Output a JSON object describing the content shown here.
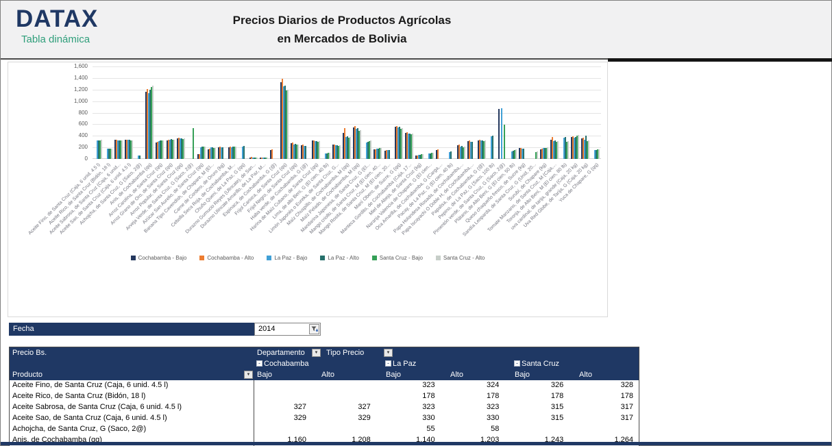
{
  "brand": {
    "logo": "DATAX",
    "tagline": "Tabla dinámica",
    "logo_color": "#1F3864",
    "tagline_color": "#2E9E7A"
  },
  "title": {
    "line1": "Precios Diarios de Productos Agrícolas",
    "line2": "en Mercados de Bolivia"
  },
  "theme": {
    "navy": "#1F3864",
    "header_bg": "#F1F1F2"
  },
  "chart_data": {
    "type": "bar",
    "title": "",
    "xlabel": "",
    "ylabel": "",
    "ylim": [
      0,
      1600
    ],
    "yticks": [
      0,
      200,
      400,
      600,
      800,
      1000,
      1200,
      1400,
      1600
    ],
    "grid": true,
    "legend_position": "bottom",
    "categories": [
      "Aceite Fino, de Santa Cruz (Caja, 6 unid. 4.5 l)",
      "Aceite Rico, de Santa Cruz (Bidón, 18 l)",
      "Aceite Sabrosa, de Santa Cruz (Caja, 6 unid...",
      "Aceite Sao, de Santa Cruz (Caja, 6 unid. 4.5 l)",
      "Achojcha, de Santa Cruz, G (Saco, 2@)",
      "Anis, de Cochabamba (qq)",
      "Arroz Carolina, de Santa Cruz (qq)",
      "Arroz Grano de Oro, de Santa Cruz (qq)",
      "Arroz Popular, de Santa Cruz (qq)",
      "Arveja Verde, de Santa Cruz, G (Saco, 2@)",
      "Azúcar San Aurelio, de Santa Cruz (qq)",
      "Banana Tipo Cavendish, de Chapare, M (El...",
      "Carne de Cordero, de Oruro (kg)",
      "Cebolla Seca Roja, de Cochabamba, M...",
      "Chuño Queni, de La Paz, G (qq)",
      "Durazno Gumucio Reyes (Ulincate), de San...",
      "Durazno Ulincate Amarillo, de La Paz, M...",
      "Espinaca, de Cochabamba, G (@)",
      "Frijol Carioca, de Santa Cruz (qq)",
      "Frijol Negro, de Santa Cruz (qq)",
      "Haba verde, de Cochabamba, G (@)",
      "Harina de Maíz Cubano, de Santa Cruz (qq)",
      "Lima, de alto Beni, G (El cien, 40 lb)",
      "Limón Japonés o Eureka, de Santa Cruz, G...",
      "Maíz Chuspillo, de Cochabamba, M (qq)",
      "Maíz Pelado, de Cochabamba, M (qq)",
      "Mandarina Japonesa, de Santa Cruz, G (El...",
      "Mango criollo, de Santa Cruz, M (El cien, 40...",
      "Mango Rosita, de Santa Cruz, M (El cien, 20...",
      "Maní Obero, de Sucre, G (qq)",
      "Manteca Gordito, de Cochabamba (Caja, 17...",
      "Miel de Abeja, de Santa Cruz (kg)",
      "Naranja Valencia de Chapare, G (El cien...",
      "Oca Amarilla, de Cochabamba, G (Carga,...",
      "Pacay, de La Paz, G (El cien, 40 lb)",
      "Papa Holandesa Rosada, de Cochabamba,...",
      "Papa Iscayachi O Doble H, de Cochabamba,...",
      "Papalisa, de Cochabamba, G (@)",
      "Pepino, de La Paz, G (Saco, 100 lb)",
      "Pimentón verde, de Santa Cruz, G (Saco, 2@)",
      "Plátano, de Alto Beni, G (El cien, 50 lb)",
      "Queso chaqueño fresco, de Sucre (kg)",
      "Sandía Leoparda, de Santa Cruz, G (Unid, 20...",
      "Surubí, de Chapare (kg)",
      "Tomate Manzano, de Santa Cruz, M (Caja,...",
      "Toronja, de Alto Beni, M (El cien, 80 lb)",
      "uva cardinal, de tarija, grande (Caja, 20 kg)",
      "Uva Red Globe, de Tarija, G (Caja, 20 kg)",
      "Yuca de Chapare, G (qq)"
    ],
    "series": [
      {
        "name": "Cochabamba - Bajo",
        "color": "#24385E",
        "values": [
          null,
          null,
          327,
          329,
          null,
          1160,
          285,
          320,
          360,
          null,
          80,
          165,
          205,
          200,
          null,
          30,
          25,
          160,
          1330,
          270,
          235,
          315,
          null,
          245,
          455,
          545,
          null,
          165,
          145,
          560,
          450,
          60,
          null,
          155,
          null,
          235,
          305,
          325,
          null,
          860,
          null,
          185,
          null,
          165,
          335,
          null,
          385,
          355,
          null
        ]
      },
      {
        "name": "Cochabamba - Alto",
        "color": "#ED7D31",
        "values": [
          null,
          null,
          327,
          329,
          null,
          1208,
          295,
          330,
          368,
          null,
          85,
          175,
          210,
          210,
          null,
          32,
          27,
          170,
          1390,
          280,
          245,
          320,
          null,
          255,
          530,
          565,
          null,
          170,
          150,
          575,
          460,
          65,
          null,
          165,
          null,
          245,
          315,
          335,
          null,
          null,
          null,
          195,
          null,
          175,
          385,
          null,
          395,
          365,
          null
        ]
      },
      {
        "name": "La Paz - Bajo",
        "color": "#41A0D6",
        "values": [
          323,
          178,
          323,
          330,
          55,
          1140,
          310,
          335,
          355,
          null,
          205,
          200,
          200,
          205,
          215,
          28,
          22,
          null,
          1255,
          255,
          225,
          305,
          95,
          235,
          385,
          525,
          285,
          175,
          155,
          545,
          440,
          70,
          95,
          null,
          125,
          215,
          295,
          315,
          395,
          880,
          135,
          175,
          null,
          185,
          305,
          365,
          365,
          335,
          155
        ]
      },
      {
        "name": "La Paz - Alto",
        "color": "#26706B",
        "values": [
          324,
          178,
          323,
          330,
          58,
          1203,
          315,
          340,
          360,
          null,
          210,
          205,
          205,
          208,
          220,
          30,
          24,
          null,
          1265,
          260,
          230,
          310,
          100,
          240,
          395,
          535,
          295,
          180,
          160,
          555,
          445,
          75,
          100,
          null,
          135,
          225,
          300,
          320,
          405,
          null,
          145,
          180,
          null,
          190,
          315,
          375,
          375,
          405,
          160
        ]
      },
      {
        "name": "Santa Cruz - Bajo",
        "color": "#35A057",
        "values": [
          326,
          178,
          315,
          315,
          null,
          1243,
          320,
          330,
          350,
          530,
          215,
          190,
          null,
          215,
          null,
          25,
          20,
          null,
          1180,
          250,
          null,
          300,
          105,
          230,
          365,
          485,
          305,
          185,
          null,
          525,
          430,
          80,
          105,
          null,
          null,
          205,
          null,
          305,
          null,
          590,
          155,
          null,
          125,
          195,
          295,
          295,
          405,
          305,
          165
        ]
      },
      {
        "name": "Santa Cruz - Alto",
        "color": "#C7CEC9",
        "values": [
          328,
          178,
          317,
          317,
          null,
          1264,
          322,
          335,
          355,
          null,
          218,
          195,
          null,
          218,
          null,
          27,
          22,
          null,
          1195,
          255,
          null,
          305,
          110,
          235,
          375,
          495,
          315,
          190,
          null,
          535,
          435,
          85,
          110,
          null,
          null,
          215,
          null,
          315,
          null,
          null,
          165,
          null,
          130,
          200,
          305,
          305,
          415,
          315,
          170
        ]
      }
    ]
  },
  "filter": {
    "label": "Fecha",
    "value": "2014"
  },
  "pivot": {
    "corner_label": "Precio Bs.",
    "col_field": "Departamento",
    "col_field2": "Tipo Precio",
    "row_field": "Producto",
    "groups": [
      {
        "name": "Cochabamba"
      },
      {
        "name": "La Paz"
      },
      {
        "name": "Santa Cruz"
      }
    ],
    "subheaders": [
      "Bajo",
      "Alto",
      "Bajo",
      "Alto",
      "Bajo",
      "Alto"
    ],
    "rows": [
      {
        "product": "Aceite Fino, de Santa Cruz (Caja, 6 unid. 4.5 l)",
        "values": [
          "",
          "",
          "323",
          "324",
          "326",
          "328"
        ]
      },
      {
        "product": "Aceite Rico, de Santa Cruz (Bidón, 18 l)",
        "values": [
          "",
          "",
          "178",
          "178",
          "178",
          "178"
        ]
      },
      {
        "product": "Aceite Sabrosa, de Santa Cruz (Caja, 6 unid. 4.5 l)",
        "values": [
          "327",
          "327",
          "323",
          "323",
          "315",
          "317"
        ]
      },
      {
        "product": "Aceite Sao, de Santa Cruz (Caja, 6 unid. 4.5 l)",
        "values": [
          "329",
          "329",
          "330",
          "330",
          "315",
          "317"
        ]
      },
      {
        "product": "Achojcha, de Santa Cruz, G (Saco, 2@)",
        "values": [
          "",
          "",
          "55",
          "58",
          "",
          ""
        ]
      },
      {
        "product": "Anis, de Cochabamba (qq)",
        "values": [
          "1,160",
          "1,208",
          "1,140",
          "1,203",
          "1,243",
          "1,264"
        ]
      }
    ]
  }
}
